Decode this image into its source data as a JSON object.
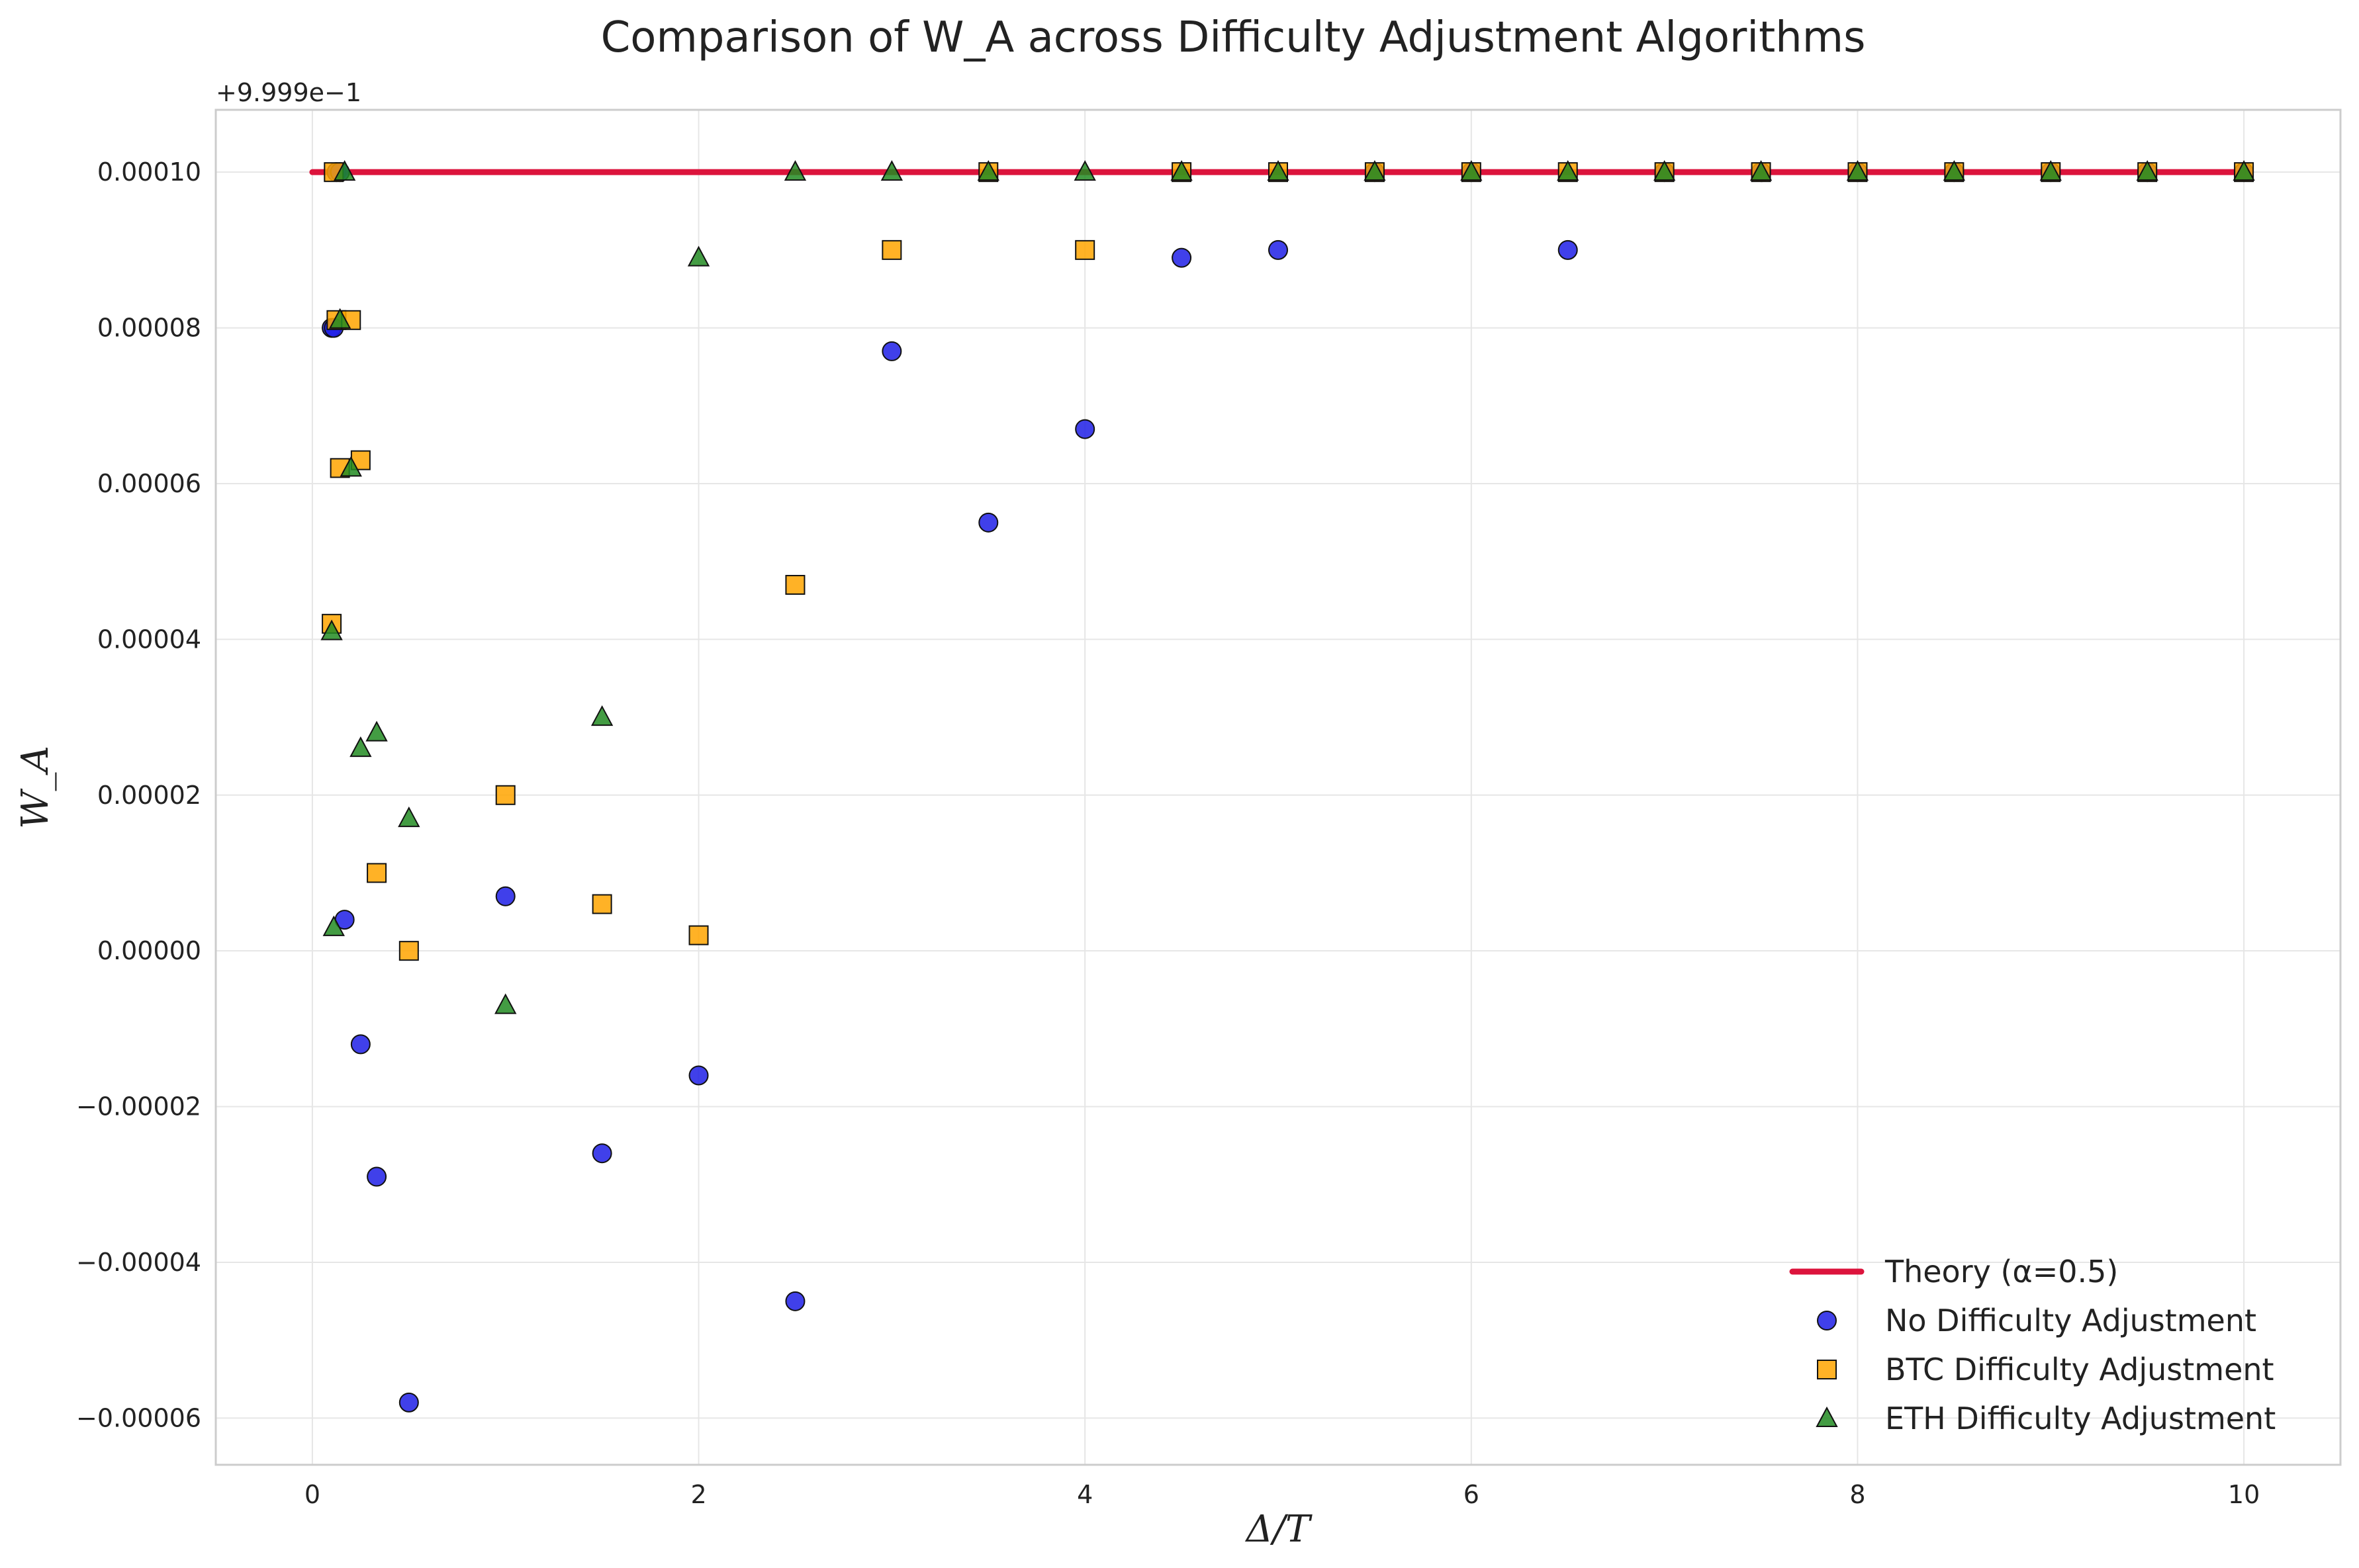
{
  "chart_data": {
    "type": "scatter",
    "title": "Comparison of W_A across Difficulty Adjustment Algorithms",
    "xlabel": "Δ/T",
    "ylabel": "W_A",
    "y_offset_label": "+9.999e−1",
    "xlim": [
      -0.5,
      10.5
    ],
    "ylim": [
      -6.6e-05,
      0.000108
    ],
    "x_ticks": [
      0,
      2,
      4,
      6,
      8,
      10
    ],
    "x_tick_labels": [
      "0",
      "2",
      "4",
      "6",
      "8",
      "10"
    ],
    "y_ticks": [
      -6e-05,
      -4e-05,
      -2e-05,
      0,
      2e-05,
      4e-05,
      6e-05,
      8e-05,
      0.0001
    ],
    "y_tick_labels": [
      "−0.00006",
      "−0.00004",
      "−0.00002",
      "0.00000",
      "0.00002",
      "0.00004",
      "0.00006",
      "0.00008",
      "0.00010"
    ],
    "grid": true,
    "legend_position": "bottom-right",
    "series": [
      {
        "name": "Theory (α=0.5)",
        "type": "line",
        "color": "#dc143c",
        "points": [
          [
            0,
            0.0001
          ],
          [
            10,
            0.0001
          ]
        ]
      },
      {
        "name": "No Difficulty Adjustment",
        "type": "scatter",
        "marker": "circle",
        "color": "#1f1fe6",
        "points": [
          [
            0.1,
            8e-05
          ],
          [
            0.111,
            8e-05
          ],
          [
            0.125,
            0.0001
          ],
          [
            0.143,
            0.0001
          ],
          [
            0.167,
            4e-06
          ],
          [
            0.25,
            -1.2e-05
          ],
          [
            0.333,
            -2.9e-05
          ],
          [
            0.5,
            -5.8e-05
          ],
          [
            1.0,
            7e-06
          ],
          [
            1.5,
            -2.6e-05
          ],
          [
            2.0,
            -1.6e-05
          ],
          [
            2.5,
            -4.5e-05
          ],
          [
            3.0,
            7.7e-05
          ],
          [
            3.5,
            5.5e-05
          ],
          [
            4.0,
            6.7e-05
          ],
          [
            4.5,
            8.9e-05
          ],
          [
            5.0,
            9e-05
          ],
          [
            5.5,
            0.0001
          ],
          [
            6.0,
            0.0001
          ],
          [
            6.5,
            9e-05
          ],
          [
            7.0,
            0.0001
          ],
          [
            7.5,
            0.0001
          ],
          [
            8.0,
            0.0001
          ],
          [
            8.5,
            0.0001
          ],
          [
            9.0,
            0.0001
          ],
          [
            9.5,
            0.0001
          ],
          [
            10.0,
            0.0001
          ]
        ]
      },
      {
        "name": "BTC Difficulty Adjustment",
        "type": "scatter",
        "marker": "square",
        "color": "#ffa500",
        "points": [
          [
            0.1,
            4.2e-05
          ],
          [
            0.111,
            0.0001
          ],
          [
            0.125,
            8.1e-05
          ],
          [
            0.143,
            6.2e-05
          ],
          [
            0.2,
            8.1e-05
          ],
          [
            0.25,
            6.3e-05
          ],
          [
            0.333,
            1e-05
          ],
          [
            0.5,
            0.0
          ],
          [
            1.0,
            2e-05
          ],
          [
            1.5,
            6e-06
          ],
          [
            2.0,
            2e-06
          ],
          [
            2.5,
            4.7e-05
          ],
          [
            3.0,
            9e-05
          ],
          [
            3.5,
            0.0001
          ],
          [
            4.0,
            9e-05
          ],
          [
            4.5,
            0.0001
          ],
          [
            5.0,
            0.0001
          ],
          [
            5.5,
            0.0001
          ],
          [
            6.0,
            0.0001
          ],
          [
            6.5,
            0.0001
          ],
          [
            7.0,
            0.0001
          ],
          [
            7.5,
            0.0001
          ],
          [
            8.0,
            0.0001
          ],
          [
            8.5,
            0.0001
          ],
          [
            9.0,
            0.0001
          ],
          [
            9.5,
            0.0001
          ],
          [
            10.0,
            0.0001
          ]
        ]
      },
      {
        "name": "ETH Difficulty Adjustment",
        "type": "scatter",
        "marker": "triangle",
        "color": "#228b22",
        "points": [
          [
            0.1,
            4.1e-05
          ],
          [
            0.111,
            3e-06
          ],
          [
            0.143,
            8.1e-05
          ],
          [
            0.167,
            0.0001
          ],
          [
            0.2,
            6.2e-05
          ],
          [
            0.25,
            2.6e-05
          ],
          [
            0.333,
            2.8e-05
          ],
          [
            0.5,
            1.7e-05
          ],
          [
            1.0,
            -7e-06
          ],
          [
            1.5,
            3e-05
          ],
          [
            2.0,
            8.9e-05
          ],
          [
            2.5,
            0.0001
          ],
          [
            3.0,
            0.0001
          ],
          [
            3.5,
            0.0001
          ],
          [
            4.0,
            0.0001
          ],
          [
            4.5,
            0.0001
          ],
          [
            5.0,
            0.0001
          ],
          [
            5.5,
            0.0001
          ],
          [
            6.0,
            0.0001
          ],
          [
            6.5,
            0.0001
          ],
          [
            7.0,
            0.0001
          ],
          [
            7.5,
            0.0001
          ],
          [
            8.0,
            0.0001
          ],
          [
            8.5,
            0.0001
          ],
          [
            9.0,
            0.0001
          ],
          [
            9.5,
            0.0001
          ],
          [
            10.0,
            0.0001
          ]
        ]
      }
    ]
  }
}
